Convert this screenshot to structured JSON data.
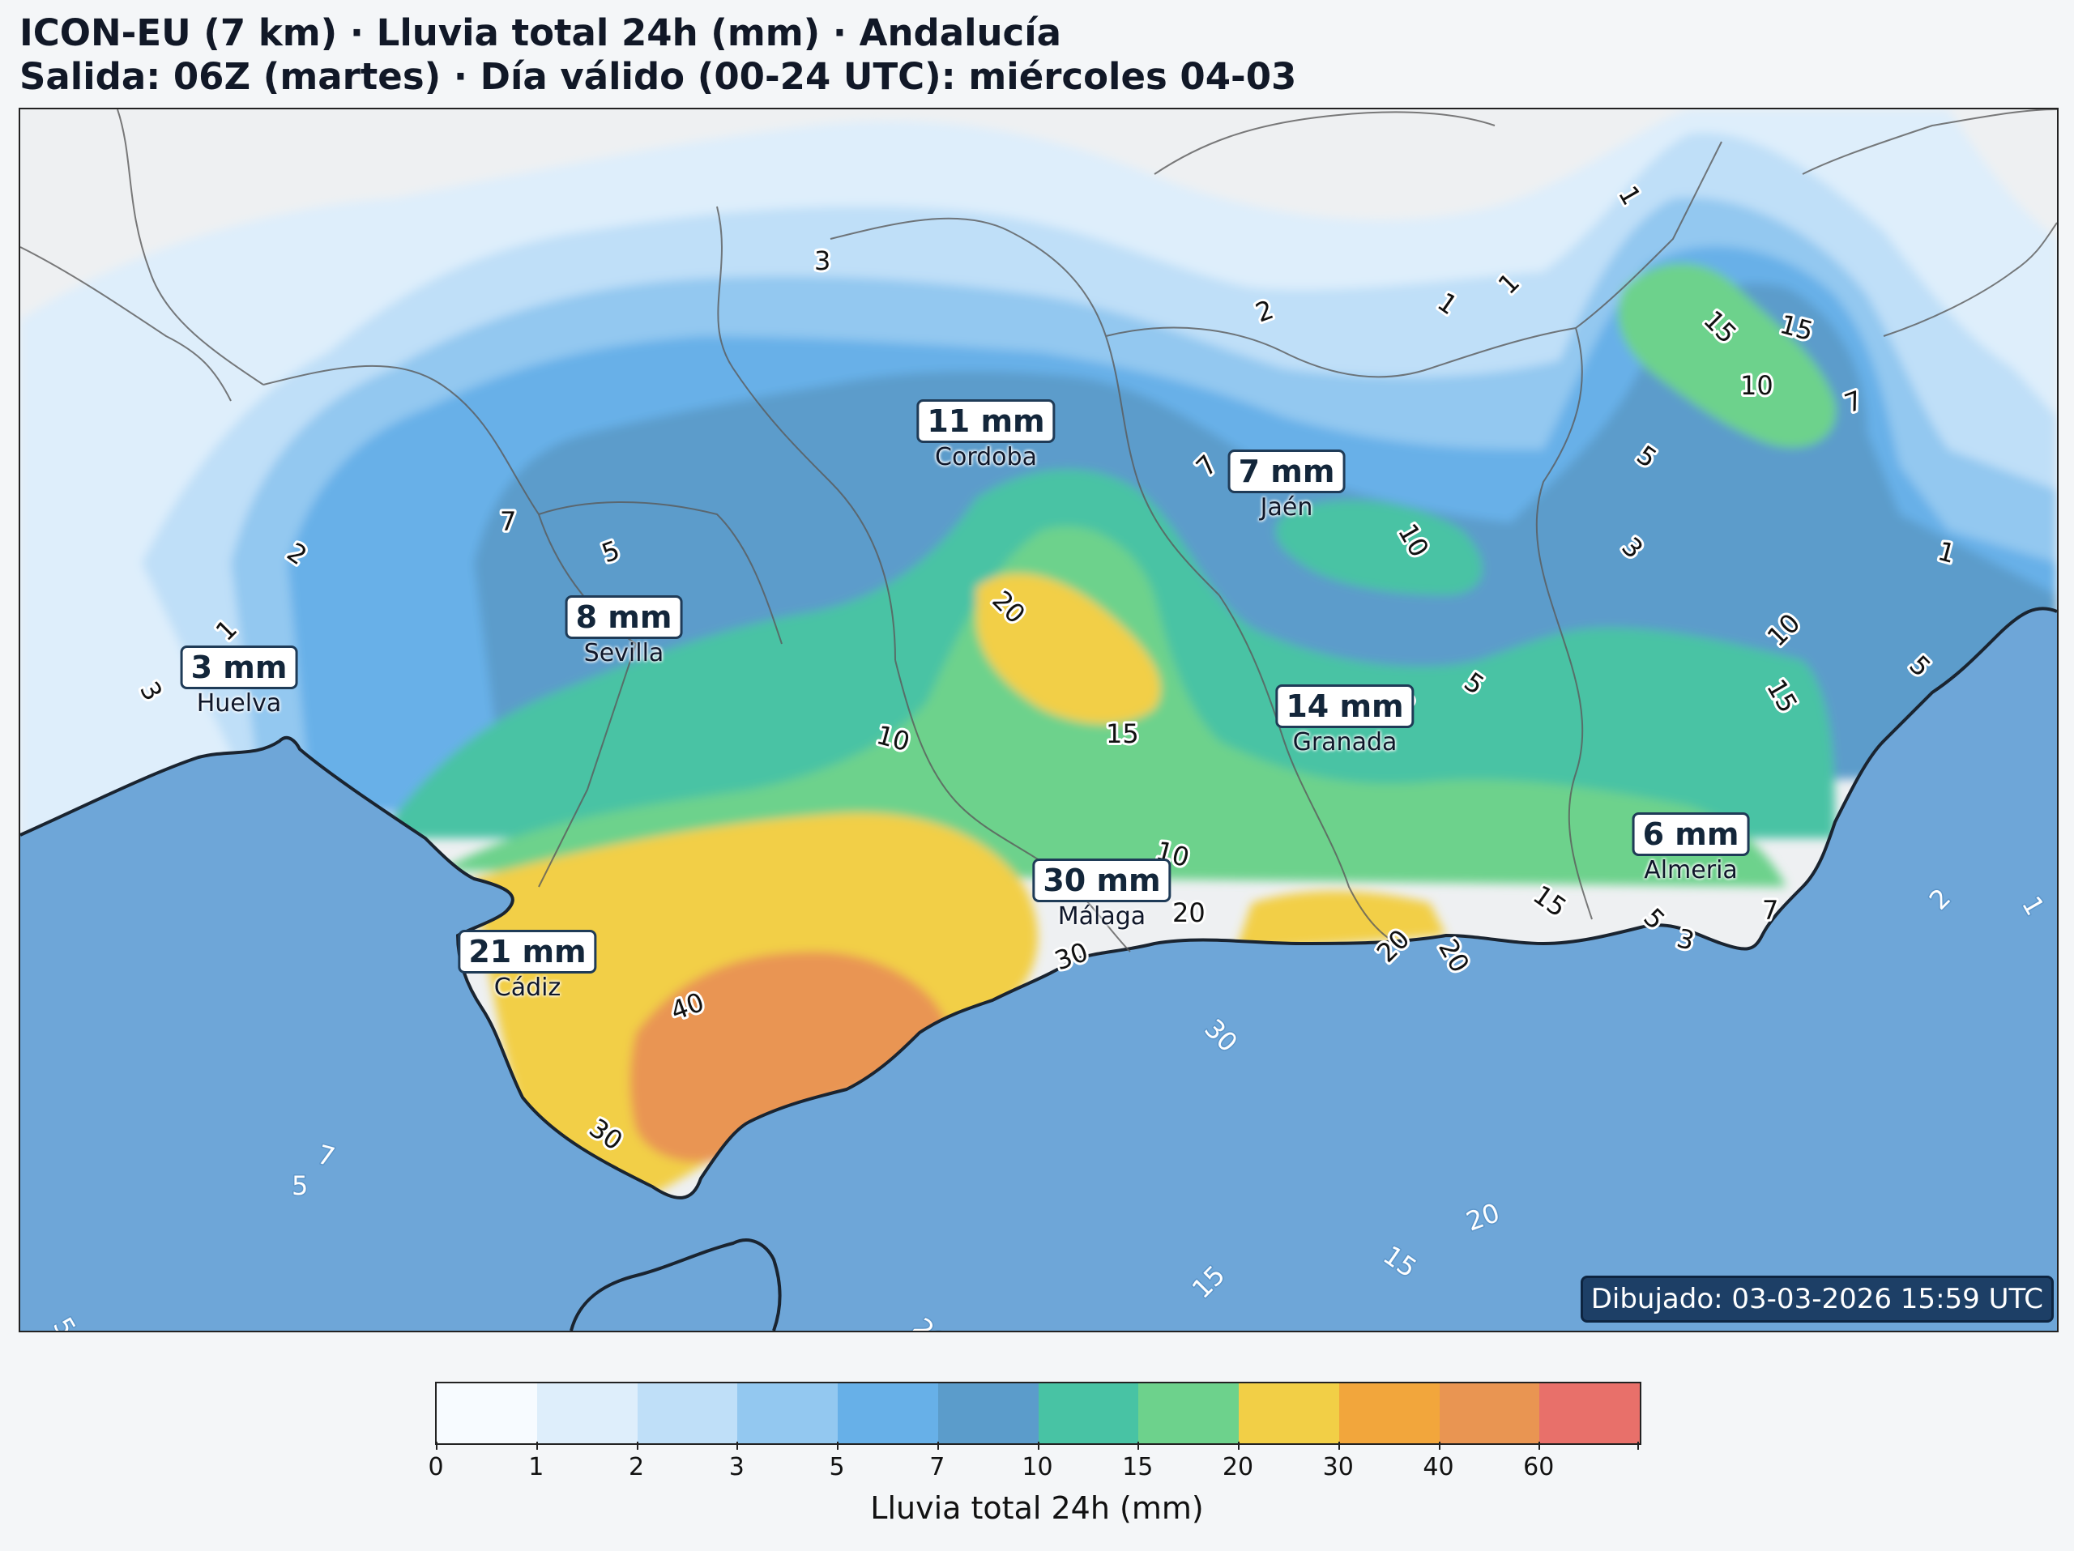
{
  "title_line1": "ICON-EU (7 km) · Lluvia total 24h (mm) · Andalucía",
  "title_line2": "Salida: 06Z (martes) · Día válido (00-24 UTC): miércoles 04-03",
  "drawn": "Dibujado: 03-03-2026 15:59 UTC",
  "colorbar": {
    "label": "Lluvia total 24h (mm)",
    "ticks": [
      "0",
      "1",
      "2",
      "3",
      "5",
      "7",
      "10",
      "15",
      "20",
      "30",
      "40",
      "60"
    ],
    "colors": [
      "#f7fbff",
      "#deeefb",
      "#bfdff8",
      "#93c8f0",
      "#67b0e8",
      "#5b9ccb",
      "#48c3a4",
      "#6dd28c",
      "#f2cf46",
      "#f2a63c",
      "#e99552",
      "#e8706a"
    ]
  },
  "colors": {
    "sea": "#6ea6d8",
    "land_dry": "#eef0f2",
    "border": "#555555",
    "coast": "#1a2430"
  },
  "cities": [
    {
      "name": "Cordoba",
      "value": "11 mm"
    },
    {
      "name": "Jaén",
      "value": "7 mm"
    },
    {
      "name": "Sevilla",
      "value": "8 mm"
    },
    {
      "name": "Huelva",
      "value": "3 mm"
    },
    {
      "name": "Granada",
      "value": "14 mm"
    },
    {
      "name": "Almeria",
      "value": "6 mm"
    },
    {
      "name": "Málaga",
      "value": "30 mm"
    },
    {
      "name": "Cádiz",
      "value": "21 mm"
    }
  ],
  "contour_labels": [
    {
      "text": "3"
    },
    {
      "text": "2"
    },
    {
      "text": "1"
    },
    {
      "text": "1"
    },
    {
      "text": "1"
    },
    {
      "text": "15"
    },
    {
      "text": "15"
    },
    {
      "text": "10"
    },
    {
      "text": "7"
    },
    {
      "text": "5"
    },
    {
      "text": "7"
    },
    {
      "text": "10"
    },
    {
      "text": "3"
    },
    {
      "text": "1"
    },
    {
      "text": "7"
    },
    {
      "text": "5"
    },
    {
      "text": "2"
    },
    {
      "text": "1"
    },
    {
      "text": "3"
    },
    {
      "text": "20"
    },
    {
      "text": "10"
    },
    {
      "text": "15"
    },
    {
      "text": "3"
    },
    {
      "text": "5"
    },
    {
      "text": "10"
    },
    {
      "text": "15"
    },
    {
      "text": "5"
    },
    {
      "text": "10"
    },
    {
      "text": "20"
    },
    {
      "text": "30"
    },
    {
      "text": "15"
    },
    {
      "text": "20"
    },
    {
      "text": "20"
    },
    {
      "text": "5"
    },
    {
      "text": "3"
    },
    {
      "text": "7"
    },
    {
      "text": "40"
    },
    {
      "text": "30"
    },
    {
      "text": "2"
    },
    {
      "text": "1"
    },
    {
      "text": "30"
    },
    {
      "text": "7"
    },
    {
      "text": "5"
    },
    {
      "text": "20"
    },
    {
      "text": "15"
    },
    {
      "text": "15"
    },
    {
      "text": "5"
    },
    {
      "text": "20"
    }
  ]
}
